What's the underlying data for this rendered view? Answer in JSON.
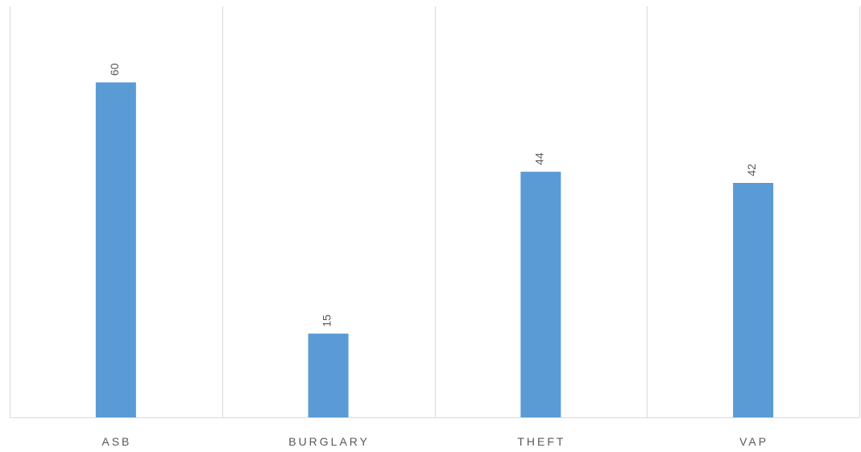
{
  "chart_data": {
    "type": "bar",
    "categories": [
      "ASB",
      "BURGLARY",
      "THEFT",
      "VAP"
    ],
    "series": [
      {
        "values": [
          60,
          15,
          44,
          42
        ]
      }
    ],
    "data_labels": [
      "60",
      "15",
      "44",
      "42"
    ],
    "ylim": [
      0,
      70
    ],
    "grid": "vertical category separators",
    "legend": "none",
    "colors": {
      "bar": "#5b9bd5",
      "axis": "#d9d9d9",
      "text": "#595959"
    }
  }
}
